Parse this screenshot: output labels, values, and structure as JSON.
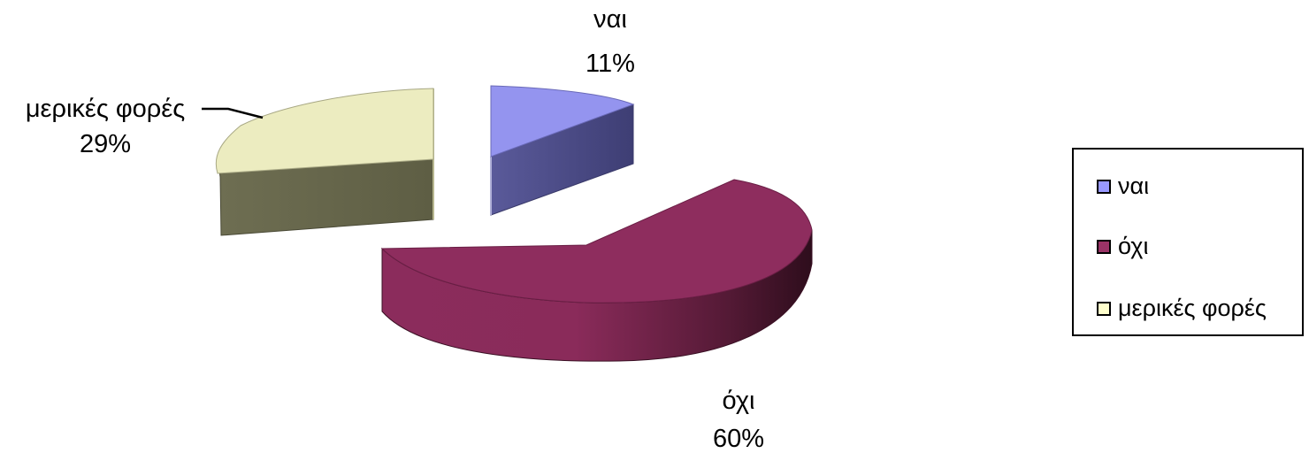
{
  "chart_data": {
    "type": "pie",
    "style": "3d-exploded",
    "categories": [
      "ναι",
      "όχι",
      "μερικές φορές"
    ],
    "values": [
      11,
      60,
      29
    ],
    "value_labels": [
      "11%",
      "60%",
      "29%"
    ],
    "colors": [
      "#9999ff",
      "#993366",
      "#ffffcc"
    ],
    "legend_position": "right"
  }
}
